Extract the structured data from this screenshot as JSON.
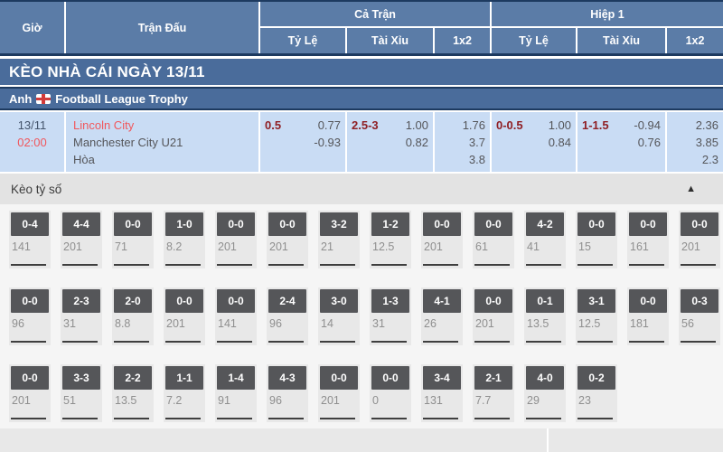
{
  "header": {
    "col_time": "Giờ",
    "col_match": "Trận Đấu",
    "group_full": "Cả Trận",
    "group_half": "Hiệp 1",
    "sub_handicap": "Tỷ Lệ",
    "sub_over_under": "Tài Xỉu",
    "sub_1x2": "1x2"
  },
  "section_title": "KÈO NHÀ CÁI NGÀY 13/11",
  "league": {
    "country": "Anh",
    "name": "Football League Trophy"
  },
  "match": {
    "date": "13/11",
    "time": "02:00",
    "home": "Lincoln City",
    "away": "Manchester City U21",
    "draw": "Hòa",
    "full": {
      "handicap": {
        "line": "0.5",
        "odds1": "0.77",
        "odds2": "-0.93"
      },
      "over_under": {
        "line": "2.5-3",
        "odds1": "1.00",
        "odds2": "0.82"
      },
      "x12": [
        "1.76",
        "3.7",
        "3.8"
      ]
    },
    "half": {
      "handicap": {
        "line": "0-0.5",
        "odds1": "1.00",
        "odds2": "0.84"
      },
      "over_under": {
        "line": "1-1.5",
        "odds1": "-0.94",
        "odds2": "0.76"
      },
      "x12": [
        "2.36",
        "3.85",
        "2.3"
      ]
    }
  },
  "score_section": {
    "title": "Kèo tỷ số",
    "collapse_icon": "▲",
    "rows": [
      [
        {
          "score": "0-4",
          "odds": "141"
        },
        {
          "score": "4-4",
          "odds": "201"
        },
        {
          "score": "0-0",
          "odds": "71"
        },
        {
          "score": "1-0",
          "odds": "8.2"
        },
        {
          "score": "0-0",
          "odds": "201"
        },
        {
          "score": "0-0",
          "odds": "201"
        },
        {
          "score": "3-2",
          "odds": "21"
        },
        {
          "score": "1-2",
          "odds": "12.5"
        },
        {
          "score": "0-0",
          "odds": "201"
        },
        {
          "score": "0-0",
          "odds": "61"
        },
        {
          "score": "4-2",
          "odds": "41"
        },
        {
          "score": "0-0",
          "odds": "15"
        },
        {
          "score": "0-0",
          "odds": "161"
        },
        {
          "score": "0-0",
          "odds": "201"
        }
      ],
      [
        {
          "score": "0-0",
          "odds": "96"
        },
        {
          "score": "2-3",
          "odds": "31"
        },
        {
          "score": "2-0",
          "odds": "8.8"
        },
        {
          "score": "0-0",
          "odds": "201"
        },
        {
          "score": "0-0",
          "odds": "141"
        },
        {
          "score": "2-4",
          "odds": "96"
        },
        {
          "score": "3-0",
          "odds": "14"
        },
        {
          "score": "1-3",
          "odds": "31"
        },
        {
          "score": "4-1",
          "odds": "26"
        },
        {
          "score": "0-0",
          "odds": "201"
        },
        {
          "score": "0-1",
          "odds": "13.5"
        },
        {
          "score": "3-1",
          "odds": "12.5"
        },
        {
          "score": "0-0",
          "odds": "181"
        },
        {
          "score": "0-3",
          "odds": "56"
        }
      ],
      [
        {
          "score": "0-0",
          "odds": "201"
        },
        {
          "score": "3-3",
          "odds": "51"
        },
        {
          "score": "2-2",
          "odds": "13.5"
        },
        {
          "score": "1-1",
          "odds": "7.2"
        },
        {
          "score": "1-4",
          "odds": "91"
        },
        {
          "score": "4-3",
          "odds": "96"
        },
        {
          "score": "0-0",
          "odds": "201"
        },
        {
          "score": "0-0",
          "odds": "0"
        },
        {
          "score": "3-4",
          "odds": "131"
        },
        {
          "score": "2-1",
          "odds": "7.7"
        },
        {
          "score": "4-0",
          "odds": "29"
        },
        {
          "score": "0-2",
          "odds": "23"
        }
      ]
    ]
  },
  "colors": {
    "header_blue": "#5b7ca7",
    "bar_blue": "#4a6c9b",
    "navy_border": "#1d3a60",
    "match_row_blue": "#c9dcf4",
    "accent_red": "#f1575c",
    "handicap_dark_red": "#8f1f24",
    "chip_dark": "#555659"
  }
}
